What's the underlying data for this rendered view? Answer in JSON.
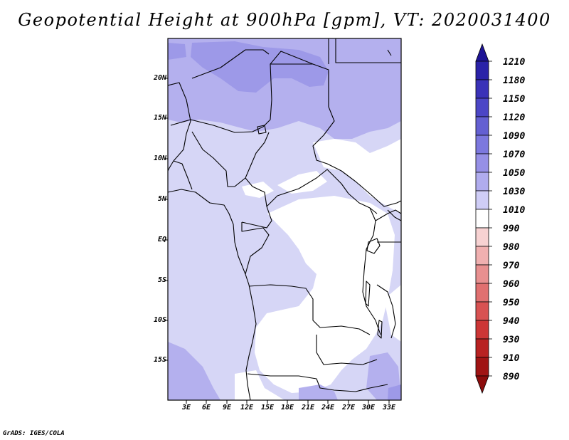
{
  "title": "Geopotential Height at 900hPa [gpm], VT: 2020031400",
  "footer": "GrADS: IGES/COLA",
  "map": {
    "lat_labels": [
      "20N",
      "15N",
      "10N",
      "5N",
      "EQ",
      "5S",
      "10S",
      "15S"
    ],
    "lon_labels": [
      "3E",
      "6E",
      "9E",
      "12E",
      "15E",
      "18E",
      "21E",
      "24E",
      "27E",
      "30E",
      "33E"
    ]
  },
  "colorbar": {
    "levels": [
      "1210",
      "1180",
      "1150",
      "1120",
      "1090",
      "1070",
      "1050",
      "1030",
      "1010",
      "990",
      "980",
      "970",
      "960",
      "950",
      "940",
      "930",
      "910",
      "890"
    ],
    "colors": [
      "#1e1496",
      "#2a22a8",
      "#3a32b8",
      "#4c46c6",
      "#6460d2",
      "#7c78de",
      "#9690e6",
      "#b0acee",
      "#cfcdf6",
      "#ffffff",
      "#f7d2d2",
      "#f0b0b0",
      "#e89090",
      "#e07070",
      "#d85252",
      "#cc3636",
      "#b82222",
      "#a01414",
      "#8c0c0c"
    ]
  }
}
